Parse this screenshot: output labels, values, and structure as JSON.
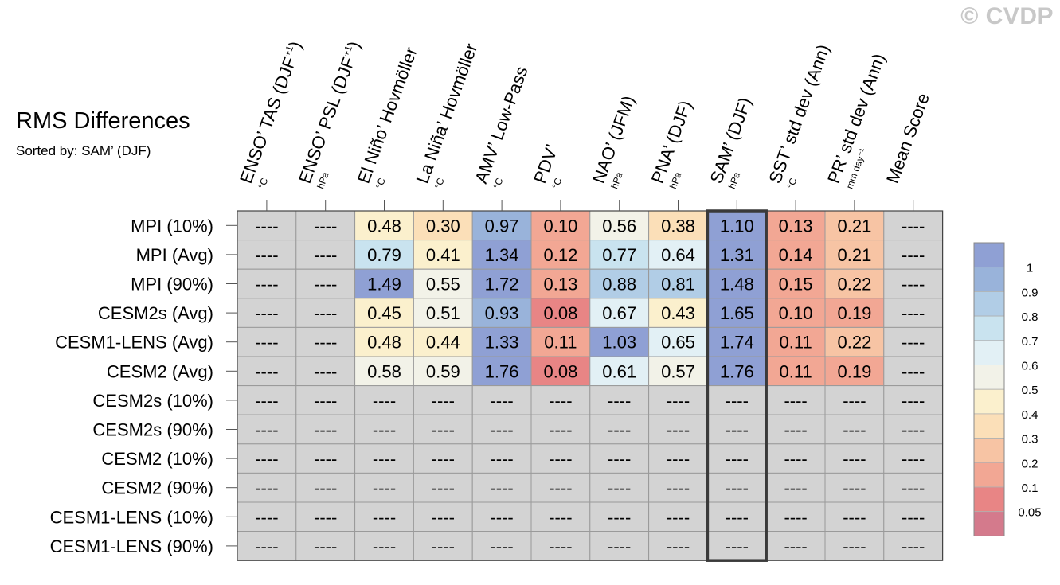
{
  "watermark": "© CVDP",
  "chart_data": {
    "type": "heatmap",
    "title": "RMS Differences",
    "subtitle": "Sorted by: SAM’ (DJF)",
    "columns": [
      {
        "label": "ENSO’ TAS (DJF",
        "sup": "+1",
        "tail": ")",
        "unit": "°C"
      },
      {
        "label": "ENSO’ PSL (DJF",
        "sup": "+1",
        "tail": ")",
        "unit": "hPa"
      },
      {
        "label": "El Niño’ Hovmöller",
        "sup": "",
        "tail": "",
        "unit": "°C"
      },
      {
        "label": "La Niña’ Hovmöller",
        "sup": "",
        "tail": "",
        "unit": "°C"
      },
      {
        "label": "AMV’ Low-Pass",
        "sup": "",
        "tail": "",
        "unit": "°C"
      },
      {
        "label": "PDV’",
        "sup": "",
        "tail": "",
        "unit": "°C"
      },
      {
        "label": "NAO’ (JFM)",
        "sup": "",
        "tail": "",
        "unit": "hPa"
      },
      {
        "label": "PNA’ (DJF)",
        "sup": "",
        "tail": "",
        "unit": "hPa"
      },
      {
        "label": "SAM’ (DJF)",
        "sup": "",
        "tail": "",
        "unit": "hPa"
      },
      {
        "label": "SST’ std dev (Ann)",
        "sup": "",
        "tail": "",
        "unit": "°C"
      },
      {
        "label": "PR’ std dev (Ann)",
        "sup": "",
        "tail": "",
        "unit": "mm day⁻¹"
      },
      {
        "label": "Mean Score",
        "sup": "",
        "tail": "",
        "unit": ""
      }
    ],
    "rows": [
      {
        "label": "MPI (10%)",
        "values": [
          "----",
          "----",
          "0.48",
          "0.30",
          "0.97",
          "0.10",
          "0.56",
          "0.38",
          "1.10",
          "0.13",
          "0.21",
          "----"
        ]
      },
      {
        "label": "MPI (Avg)",
        "values": [
          "----",
          "----",
          "0.79",
          "0.41",
          "1.34",
          "0.12",
          "0.77",
          "0.64",
          "1.31",
          "0.14",
          "0.21",
          "----"
        ]
      },
      {
        "label": "MPI (90%)",
        "values": [
          "----",
          "----",
          "1.49",
          "0.55",
          "1.72",
          "0.13",
          "0.88",
          "0.81",
          "1.48",
          "0.15",
          "0.22",
          "----"
        ]
      },
      {
        "label": "CESM2s (Avg)",
        "values": [
          "----",
          "----",
          "0.45",
          "0.51",
          "0.93",
          "0.08",
          "0.67",
          "0.43",
          "1.65",
          "0.10",
          "0.19",
          "----"
        ]
      },
      {
        "label": "CESM1-LENS (Avg)",
        "values": [
          "----",
          "----",
          "0.48",
          "0.44",
          "1.33",
          "0.11",
          "1.03",
          "0.65",
          "1.74",
          "0.11",
          "0.22",
          "----"
        ]
      },
      {
        "label": "CESM2 (Avg)",
        "values": [
          "----",
          "----",
          "0.58",
          "0.59",
          "1.76",
          "0.08",
          "0.61",
          "0.57",
          "1.76",
          "0.11",
          "0.19",
          "----"
        ]
      },
      {
        "label": "CESM2s (10%)",
        "values": [
          "----",
          "----",
          "----",
          "----",
          "----",
          "----",
          "----",
          "----",
          "----",
          "----",
          "----",
          "----"
        ]
      },
      {
        "label": "CESM2s (90%)",
        "values": [
          "----",
          "----",
          "----",
          "----",
          "----",
          "----",
          "----",
          "----",
          "----",
          "----",
          "----",
          "----"
        ]
      },
      {
        "label": "CESM2 (10%)",
        "values": [
          "----",
          "----",
          "----",
          "----",
          "----",
          "----",
          "----",
          "----",
          "----",
          "----",
          "----",
          "----"
        ]
      },
      {
        "label": "CESM2 (90%)",
        "values": [
          "----",
          "----",
          "----",
          "----",
          "----",
          "----",
          "----",
          "----",
          "----",
          "----",
          "----",
          "----"
        ]
      },
      {
        "label": "CESM1-LENS (10%)",
        "values": [
          "----",
          "----",
          "----",
          "----",
          "----",
          "----",
          "----",
          "----",
          "----",
          "----",
          "----",
          "----"
        ]
      },
      {
        "label": "CESM1-LENS (90%)",
        "values": [
          "----",
          "----",
          "----",
          "----",
          "----",
          "----",
          "----",
          "----",
          "----",
          "----",
          "----",
          "----"
        ]
      }
    ],
    "sorted_column": "SAM’ (DJF)",
    "missing_value_text": "----",
    "missing_color": "#d3d3d3",
    "colorbar": {
      "thresholds": [
        0.05,
        0.1,
        0.2,
        0.3,
        0.4,
        0.5,
        0.6,
        0.7,
        0.8,
        0.9,
        1
      ],
      "tick_labels": [
        "0.05",
        "0.1",
        "0.2",
        "0.3",
        "0.4",
        "0.5",
        "0.6",
        "0.7",
        "0.8",
        "0.9",
        "1"
      ],
      "colors": [
        "#d47a8c",
        "#e88585",
        "#f2a794",
        "#f7c4a4",
        "#fbdfb8",
        "#fbf0cd",
        "#f2f2e8",
        "#e2f0f5",
        "#c9e3ef",
        "#b1cde6",
        "#99b3da",
        "#8fa0d4"
      ]
    }
  }
}
